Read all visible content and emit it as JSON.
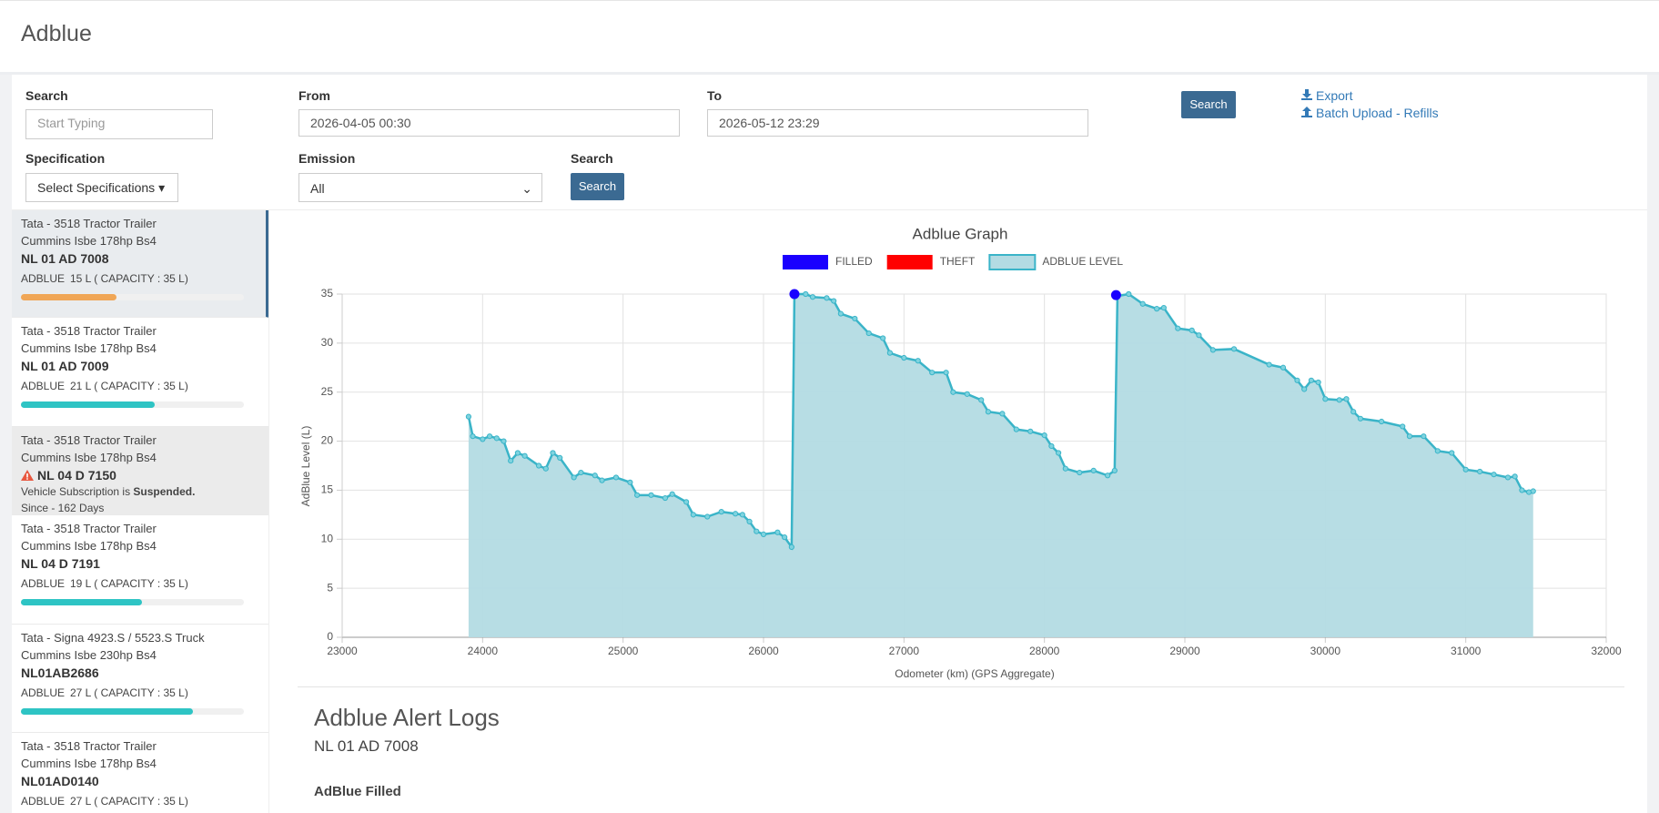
{
  "header": {
    "title": "Adblue"
  },
  "filters": {
    "search_label": "Search",
    "search_placeholder": "Start Typing",
    "from_label": "From",
    "from_value": "2026-04-05 00:30",
    "to_label": "To",
    "to_value": "2026-05-12 23:29",
    "search_button": "Search",
    "export": "Export",
    "batch_upload": "Batch Upload - Refills",
    "specification_label": "Specification",
    "specification_select": "Select Specifications",
    "emission_label": "Emission",
    "emission_value": "All",
    "search2_label": "Search",
    "search2_button": "Search"
  },
  "vehicles": [
    {
      "model": "Tata - 3518 Tractor Trailer",
      "engine": "Cummins Isbe 178hp Bs4",
      "plate": "NL 01 AD 7008",
      "level_label": "ADBLUE",
      "level": 15,
      "capacity": 35,
      "level_text": "15 L ( CAPACITY : 35 L)",
      "color": "#f0a656"
    },
    {
      "model": "Tata - 3518 Tractor Trailer",
      "engine": "Cummins Isbe 178hp Bs4",
      "plate": "NL 01 AD 7009",
      "level_label": "ADBLUE",
      "level": 21,
      "capacity": 35,
      "level_text": "21 L ( CAPACITY : 35 L)",
      "color": "#2ec4c4"
    },
    {
      "model": "Tata - 3518 Tractor Trailer",
      "engine": "Cummins Isbe 178hp Bs4",
      "plate": "NL 04 D 7150",
      "status": "Vehicle Subscription is",
      "status_strong": "Suspended.",
      "since": "Since - 162 Days"
    },
    {
      "model": "Tata - 3518 Tractor Trailer",
      "engine": "Cummins Isbe 178hp Bs4",
      "plate": "NL 04 D 7191",
      "level_label": "ADBLUE",
      "level": 19,
      "capacity": 35,
      "level_text": "19 L ( CAPACITY : 35 L)",
      "color": "#2ec4c4"
    },
    {
      "model": "Tata - Signa 4923.S / 5523.S Truck",
      "engine": "Cummins Isbe 230hp Bs4",
      "plate": "NL01AB2686",
      "level_label": "ADBLUE",
      "level": 27,
      "capacity": 35,
      "level_text": "27 L ( CAPACITY : 35 L)",
      "color": "#2ec4c4"
    },
    {
      "model": "Tata - 3518 Tractor Trailer",
      "engine": "Cummins Isbe 178hp Bs4",
      "plate": "NL01AD0140",
      "level_label": "ADBLUE",
      "level": 27,
      "capacity": 35,
      "level_text": "27 L ( CAPACITY : 35 L)",
      "color": "#2ec4c4"
    }
  ],
  "chart_data": {
    "type": "area",
    "title": "Adblue Graph",
    "xlabel": "Odometer (km) (GPS Aggregate)",
    "ylabel": "AdBlue Level (L)",
    "xlim": [
      23000,
      32000
    ],
    "xticks": [
      23000,
      24000,
      25000,
      26000,
      27000,
      28000,
      29000,
      30000,
      31000,
      32000
    ],
    "ylim": [
      0,
      35
    ],
    "yticks": [
      0,
      5,
      10,
      15,
      20,
      25,
      30,
      35
    ],
    "grid": true,
    "series": [
      {
        "name": "FILLED",
        "color": "#1a00ff",
        "x": [
          26220,
          28510
        ],
        "values": [
          35,
          34.9
        ]
      },
      {
        "name": "THEFT",
        "color": "#ff0000",
        "x": [],
        "values": []
      },
      {
        "name": "ADBLUE LEVEL",
        "color": "#3ab4c8",
        "fill": "#b3dbe3",
        "x": [
          23900,
          23930,
          24000,
          24050,
          24100,
          24150,
          24200,
          24250,
          24300,
          24400,
          24450,
          24500,
          24550,
          24650,
          24700,
          24800,
          24850,
          24950,
          25050,
          25100,
          25200,
          25300,
          25350,
          25450,
          25500,
          25600,
          25700,
          25800,
          25850,
          25900,
          25950,
          26000,
          26100,
          26150,
          26200,
          26220,
          26300,
          26350,
          26450,
          26500,
          26550,
          26650,
          26750,
          26850,
          26900,
          27000,
          27100,
          27200,
          27300,
          27350,
          27450,
          27550,
          27600,
          27700,
          27800,
          27900,
          28000,
          28050,
          28100,
          28150,
          28250,
          28350,
          28450,
          28500,
          28520,
          28600,
          28700,
          28800,
          28850,
          28950,
          29050,
          29100,
          29200,
          29350,
          29600,
          29700,
          29800,
          29850,
          29900,
          29950,
          30000,
          30100,
          30150,
          30200,
          30250,
          30400,
          30550,
          30600,
          30700,
          30800,
          30900,
          31000,
          31100,
          31200,
          31300,
          31350,
          31400,
          31450,
          31480
        ],
        "values": [
          22.5,
          20.5,
          20.2,
          20.5,
          20.3,
          20,
          18,
          18.8,
          18.5,
          17.5,
          17.2,
          18.8,
          18.3,
          16.3,
          16.8,
          16.5,
          16,
          16.3,
          15.8,
          14.5,
          14.5,
          14.2,
          14.6,
          13.8,
          12.5,
          12.3,
          12.8,
          12.6,
          12.5,
          11.8,
          10.8,
          10.5,
          10.7,
          10.2,
          9.2,
          35,
          35,
          34.7,
          34.6,
          34.3,
          33,
          32.5,
          31,
          30.5,
          29,
          28.5,
          28.2,
          27,
          27,
          25,
          24.8,
          24.2,
          23,
          22.8,
          21.2,
          21,
          20.6,
          19.5,
          18.8,
          17.2,
          16.8,
          17,
          16.5,
          17,
          34.8,
          35,
          34,
          33.5,
          33.6,
          31.5,
          31.3,
          30.8,
          29.3,
          29.4,
          27.8,
          27.5,
          26.2,
          25.3,
          26.2,
          26,
          24.3,
          24.2,
          24.3,
          23,
          22.3,
          22,
          21.5,
          20.5,
          20.5,
          19,
          18.8,
          17.1,
          16.9,
          16.6,
          16.3,
          16.4,
          15,
          14.8,
          14.9
        ]
      }
    ]
  },
  "alerts": {
    "title": "Adblue Alert Logs",
    "vehicle": "NL 01 AD 7008",
    "section": "AdBlue Filled"
  }
}
